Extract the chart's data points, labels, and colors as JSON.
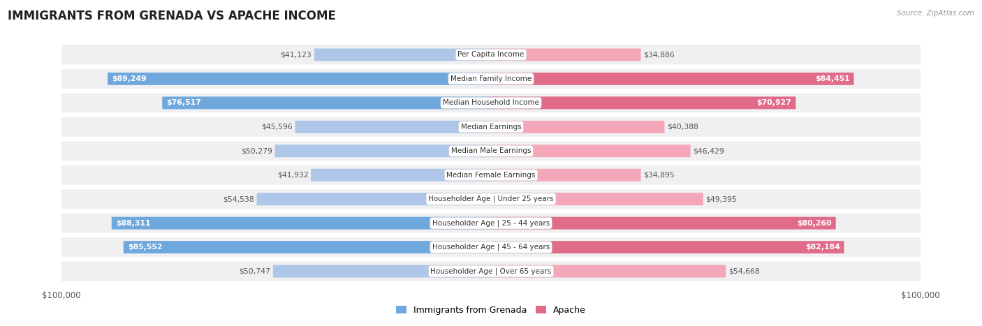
{
  "title": "IMMIGRANTS FROM GRENADA VS APACHE INCOME",
  "source": "Source: ZipAtlas.com",
  "categories": [
    "Per Capita Income",
    "Median Family Income",
    "Median Household Income",
    "Median Earnings",
    "Median Male Earnings",
    "Median Female Earnings",
    "Householder Age | Under 25 years",
    "Householder Age | 25 - 44 years",
    "Householder Age | 45 - 64 years",
    "Householder Age | Over 65 years"
  ],
  "grenada_values": [
    41123,
    89249,
    76517,
    45596,
    50279,
    41932,
    54538,
    88311,
    85552,
    50747
  ],
  "apache_values": [
    34886,
    84451,
    70927,
    40388,
    46429,
    34895,
    49395,
    80260,
    82184,
    54668
  ],
  "grenada_labels": [
    "$41,123",
    "$89,249",
    "$76,517",
    "$45,596",
    "$50,279",
    "$41,932",
    "$54,538",
    "$88,311",
    "$85,552",
    "$50,747"
  ],
  "apache_labels": [
    "$34,886",
    "$84,451",
    "$70,927",
    "$40,388",
    "$46,429",
    "$34,895",
    "$49,395",
    "$80,260",
    "$82,184",
    "$54,668"
  ],
  "grenada_color_light": "#aec6e8",
  "grenada_color_dark": "#6fa8dc",
  "apache_color_light": "#f4a7b9",
  "apache_color_dark": "#e06c8a",
  "max_value": 100000,
  "bg_color": "#ffffff",
  "row_bg": "#f0f0f2",
  "legend_grenada": "Immigrants from Grenada",
  "legend_apache": "Apache",
  "threshold": 60000
}
